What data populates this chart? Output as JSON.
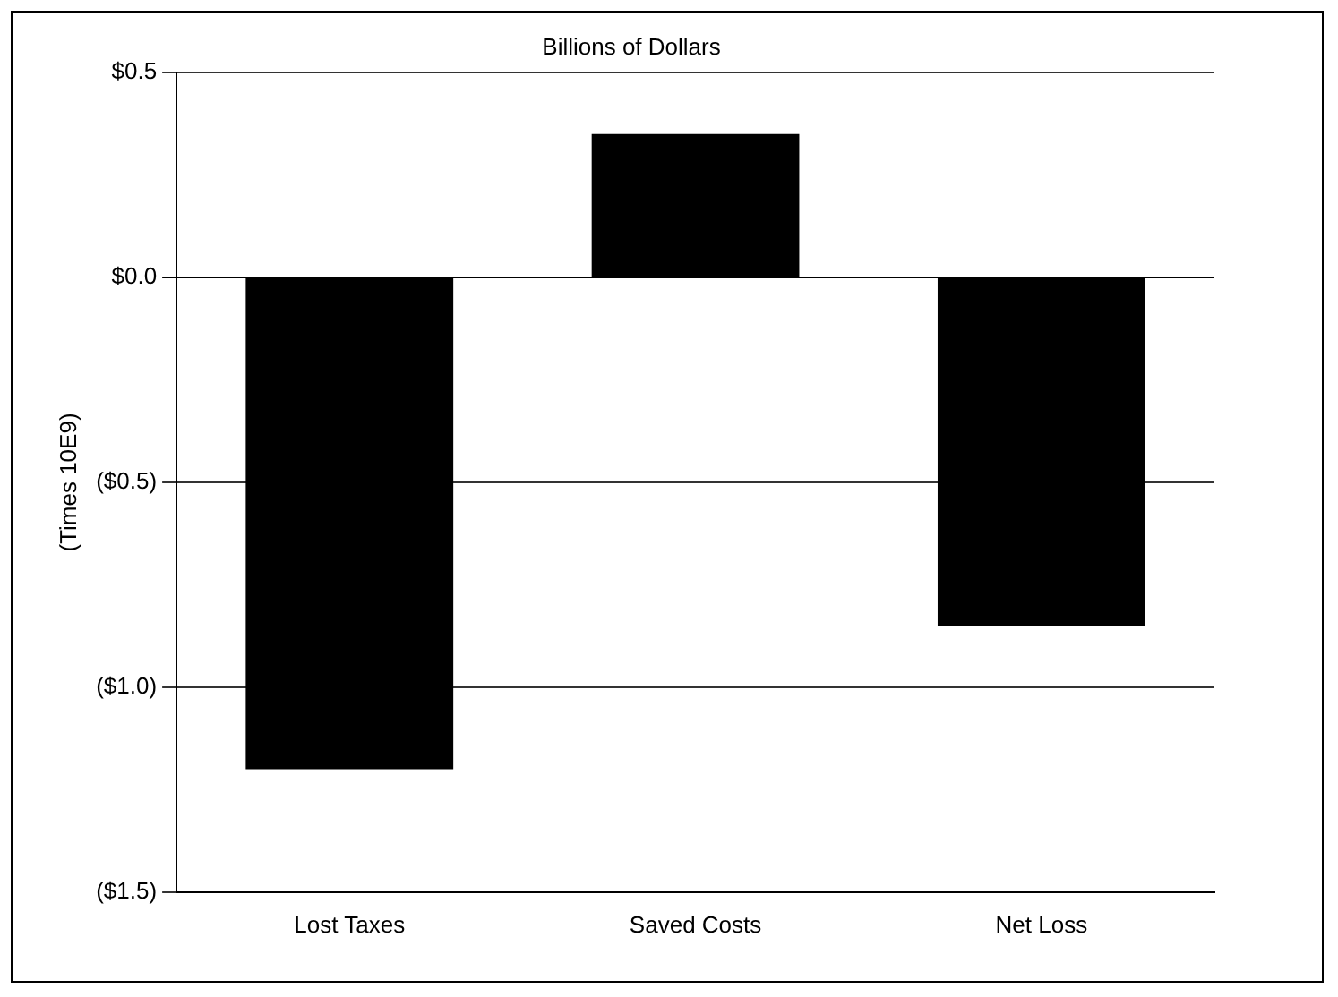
{
  "chart_data": {
    "type": "bar",
    "title": "Billions of Dollars",
    "ylabel": "(Times 10E9)",
    "categories": [
      "Lost Taxes",
      "Saved Costs",
      "Net Loss"
    ],
    "values": [
      -1.2,
      0.35,
      -0.85
    ],
    "color": "#000000",
    "ylim": [
      -1.5,
      0.5
    ],
    "yticks": [
      {
        "value": -1.5,
        "label": "($1.5)"
      },
      {
        "value": -1,
        "label": "($1.0)"
      },
      {
        "value": -0.5,
        "label": "($0.5)"
      },
      {
        "value": 0,
        "label": "$0.0"
      },
      {
        "value": 0.5,
        "label": "$0.5"
      }
    ],
    "grid": "y",
    "legend": false
  }
}
